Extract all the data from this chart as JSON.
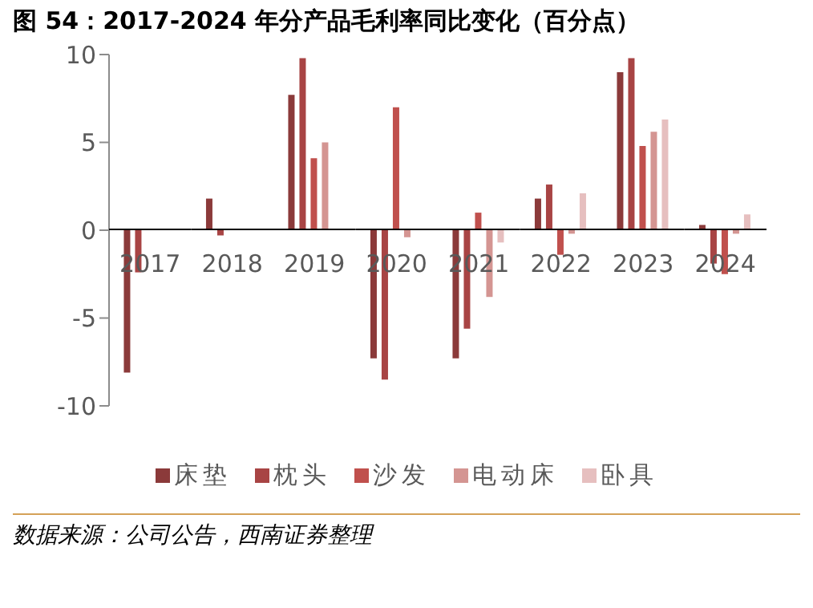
{
  "chart_data": {
    "type": "bar",
    "title": "图 54：2017-2024 年分产品毛利率同比变化（百分点）",
    "categories": [
      "2017",
      "2018",
      "2019",
      "2020",
      "2021",
      "2022",
      "2023",
      "2024"
    ],
    "series": [
      {
        "name": "床垫",
        "color": "#8b3a3a",
        "values": [
          -8.1,
          1.8,
          7.7,
          -7.3,
          -7.3,
          1.8,
          9.0,
          0.3
        ]
      },
      {
        "name": "枕头",
        "color": "#a84444",
        "values": [
          -2.4,
          -0.3,
          9.8,
          -8.5,
          -5.6,
          2.6,
          9.8,
          -1.9
        ]
      },
      {
        "name": "沙发",
        "color": "#c0504d",
        "values": [
          null,
          null,
          4.1,
          7.0,
          1.0,
          -1.4,
          4.8,
          -2.5
        ]
      },
      {
        "name": "电动床",
        "color": "#d49592",
        "values": [
          null,
          null,
          5.0,
          -0.4,
          -3.8,
          -0.2,
          5.6,
          -0.2
        ]
      },
      {
        "name": "卧具",
        "color": "#e6bfbf",
        "values": [
          null,
          null,
          null,
          null,
          -0.7,
          2.1,
          6.3,
          0.9
        ]
      }
    ],
    "ylim": [
      -10,
      10
    ],
    "yticks": [
      -10,
      -5,
      0,
      5,
      10
    ],
    "grid": false,
    "legend": "bottom",
    "annotations": [
      "数据来源：公司公告，西南证券整理"
    ]
  }
}
